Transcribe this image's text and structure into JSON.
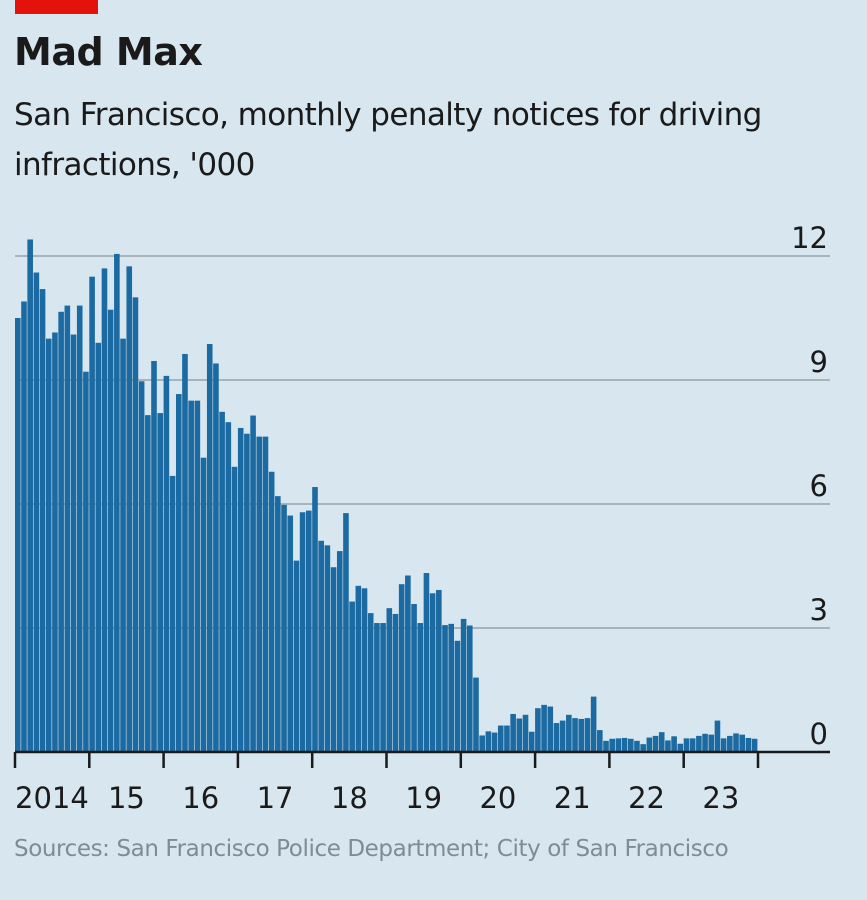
{
  "header": {
    "title": "Mad Max",
    "subtitle": "San Francisco, monthly penalty notices for driving infractions, '000"
  },
  "footer": {
    "source": "Sources: San Francisco Police Department; City of San Francisco"
  },
  "colors": {
    "bar": "#1b6aa1",
    "accent": "#e3120b",
    "background": "#d7e6ef",
    "grid": "#a9b4ba"
  },
  "chart_data": {
    "type": "bar",
    "title": "Mad Max",
    "subtitle": "San Francisco, monthly penalty notices for driving infractions, '000",
    "xlabel": "",
    "ylabel": "'000",
    "ylim": [
      0,
      12
    ],
    "yticks": [
      0,
      3,
      6,
      9,
      12
    ],
    "ytick_labels": [
      "0",
      "3",
      "6",
      "9",
      "12"
    ],
    "grid": true,
    "start": "2014-01",
    "frequency": "monthly",
    "xtick_labels": [
      "2014",
      "15",
      "16",
      "17",
      "18",
      "19",
      "20",
      "21",
      "22",
      "23"
    ],
    "values": [
      10.5,
      10.9,
      12.4,
      11.6,
      11.2,
      10.0,
      10.15,
      10.65,
      10.8,
      10.1,
      10.8,
      9.2,
      11.5,
      9.9,
      11.7,
      10.7,
      12.05,
      10.0,
      11.75,
      11.0,
      8.97,
      8.15,
      9.46,
      8.2,
      9.1,
      6.68,
      8.66,
      9.63,
      8.5,
      8.5,
      7.12,
      9.87,
      9.4,
      8.23,
      7.98,
      6.9,
      7.84,
      7.7,
      8.14,
      7.63,
      7.63,
      6.78,
      6.19,
      5.98,
      5.72,
      4.63,
      5.8,
      5.84,
      6.41,
      5.11,
      5.0,
      4.47,
      4.86,
      5.78,
      3.64,
      4.02,
      3.96,
      3.36,
      3.12,
      3.12,
      3.48,
      3.34,
      4.06,
      4.27,
      3.58,
      3.12,
      4.33,
      3.84,
      3.92,
      3.07,
      3.1,
      2.69,
      3.22,
      3.06,
      1.8,
      0.4,
      0.5,
      0.47,
      0.64,
      0.64,
      0.92,
      0.81,
      0.9,
      0.49,
      1.06,
      1.14,
      1.1,
      0.7,
      0.76,
      0.9,
      0.82,
      0.8,
      0.82,
      1.34,
      0.53,
      0.27,
      0.32,
      0.33,
      0.34,
      0.32,
      0.27,
      0.19,
      0.35,
      0.39,
      0.48,
      0.28,
      0.38,
      0.2,
      0.33,
      0.33,
      0.39,
      0.44,
      0.42,
      0.76,
      0.33,
      0.39,
      0.45,
      0.42,
      0.34,
      0.32
    ]
  }
}
